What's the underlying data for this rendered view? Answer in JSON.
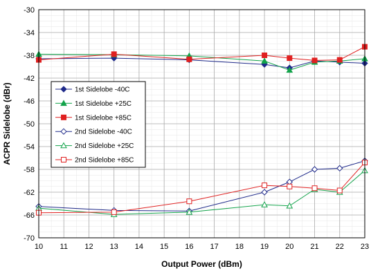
{
  "chart_data": {
    "type": "line",
    "xlabel": "Output Power (dBm)",
    "ylabel": "ACPR Sidelobe (dBr)",
    "xlim": [
      10,
      23
    ],
    "ylim": [
      -70,
      -30
    ],
    "xticks": [
      "10",
      "11",
      "12",
      "13",
      "14",
      "15",
      "16",
      "17",
      "18",
      "19",
      "20",
      "21",
      "22",
      "23"
    ],
    "yticks": [
      "-30",
      "-34",
      "-38",
      "-42",
      "-46",
      "-50",
      "-54",
      "-58",
      "-62",
      "-66",
      "-70"
    ],
    "grid": true,
    "legend_position": "left-middle",
    "series": [
      {
        "name": "1st Sidelobe -40C",
        "color": "#1f2a8a",
        "marker": "diamond",
        "filled": true,
        "x": [
          10,
          13,
          16,
          19,
          20,
          21,
          22,
          23
        ],
        "values": [
          -38.6,
          -38.5,
          -38.8,
          -39.6,
          -40.2,
          -39.0,
          -39.2,
          -39.4
        ]
      },
      {
        "name": "1st Sidelobe +25C",
        "color": "#12a34a",
        "marker": "triangle",
        "filled": true,
        "x": [
          10,
          13,
          16,
          19,
          20,
          21,
          22,
          23
        ],
        "values": [
          -37.8,
          -37.9,
          -38.1,
          -39.0,
          -40.6,
          -39.2,
          -39.0,
          -38.6
        ]
      },
      {
        "name": "1st Sidelobe +85C",
        "color": "#e02020",
        "marker": "square",
        "filled": true,
        "x": [
          10,
          13,
          16,
          19,
          20,
          21,
          22,
          23
        ],
        "values": [
          -38.8,
          -37.8,
          -38.7,
          -38.0,
          -38.5,
          -38.9,
          -38.8,
          -36.5
        ]
      },
      {
        "name": "2nd Sidelobe -40C",
        "color": "#1f2a8a",
        "marker": "diamond",
        "filled": false,
        "x": [
          10,
          13,
          16,
          19,
          20,
          21,
          22,
          23
        ],
        "values": [
          -64.5,
          -65.2,
          -65.3,
          -62.0,
          -60.2,
          -58.0,
          -57.8,
          -56.5
        ]
      },
      {
        "name": "2nd Sidelobe +25C",
        "color": "#12a34a",
        "marker": "triangle",
        "filled": false,
        "x": [
          10,
          13,
          16,
          19,
          20,
          21,
          22,
          23
        ],
        "values": [
          -64.8,
          -65.9,
          -65.5,
          -64.2,
          -64.4,
          -61.5,
          -62.0,
          -58.2
        ]
      },
      {
        "name": "2nd Sidelobe +85C",
        "color": "#e02020",
        "marker": "square",
        "filled": false,
        "x": [
          10,
          13,
          16,
          19,
          20,
          21,
          22,
          23
        ],
        "values": [
          -65.6,
          -65.5,
          -63.6,
          -60.8,
          -61.0,
          -61.3,
          -61.7,
          -56.8
        ]
      }
    ]
  }
}
